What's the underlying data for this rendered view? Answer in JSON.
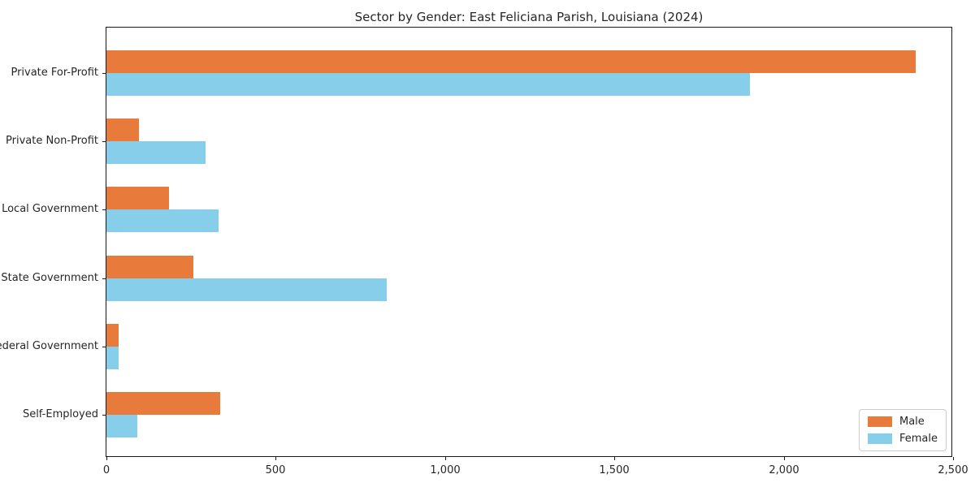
{
  "chart_data": {
    "type": "bar",
    "orientation": "horizontal",
    "title": "Sector by Gender: East Feliciana Parish, Louisiana (2024)",
    "categories": [
      "Private For-Profit",
      "Private Non-Profit",
      "Local Government",
      "State Government",
      "Federal Government",
      "Self-Employed"
    ],
    "series": [
      {
        "name": "Male",
        "color": "#E87A3C",
        "values": [
          2390,
          95,
          185,
          257,
          36,
          336
        ]
      },
      {
        "name": "Female",
        "color": "#87CEEB",
        "values": [
          1900,
          293,
          330,
          828,
          36,
          91
        ]
      }
    ],
    "xlabel": "",
    "ylabel": "",
    "xlim": [
      0,
      2500
    ],
    "x_ticks": [
      0,
      500,
      1000,
      1500,
      2000,
      2500
    ],
    "x_tick_labels": [
      "0",
      "500",
      "1,000",
      "1,500",
      "2,000",
      "2,500"
    ],
    "grid": false,
    "legend_position": "lower right",
    "axis_color": "#1a1a1a",
    "background_color": "#ffffff"
  }
}
